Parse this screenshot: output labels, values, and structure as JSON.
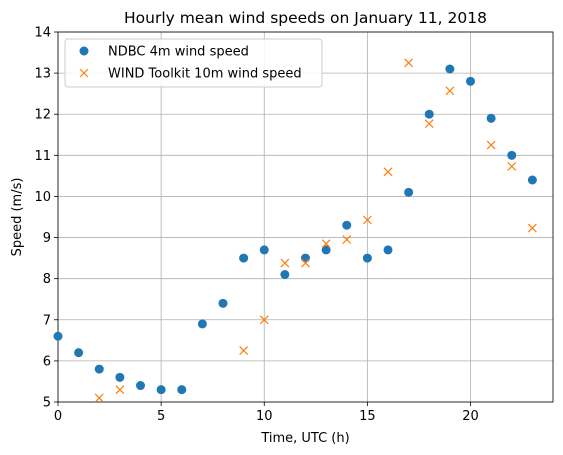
{
  "chart_data": {
    "type": "scatter",
    "title": "Hourly mean wind speeds on January 11, 2018",
    "xlabel": "Time, UTC (h)",
    "ylabel": "Speed (m/s)",
    "xlim": [
      0,
      24
    ],
    "ylim": [
      5,
      14
    ],
    "xticks": [
      0,
      5,
      10,
      15,
      20
    ],
    "yticks": [
      5,
      6,
      7,
      8,
      9,
      10,
      11,
      12,
      13,
      14
    ],
    "grid": true,
    "legend_position": "top-left",
    "series": [
      {
        "name": "NDBC 4m wind speed",
        "marker": "circle",
        "color": "#1f77b4",
        "x": [
          0,
          1,
          2,
          3,
          4,
          5,
          6,
          7,
          8,
          9,
          10,
          11,
          12,
          13,
          14,
          15,
          16,
          17,
          18,
          19,
          20,
          21,
          22,
          23
        ],
        "y": [
          6.6,
          6.2,
          5.8,
          5.6,
          5.4,
          5.3,
          5.3,
          6.9,
          7.4,
          8.5,
          8.7,
          8.1,
          8.5,
          8.7,
          9.3,
          8.5,
          8.7,
          10.1,
          12.0,
          13.1,
          12.8,
          11.9,
          11.0,
          10.4
        ]
      },
      {
        "name": "WIND Toolkit 10m wind speed",
        "marker": "x",
        "color": "#ff7f0e",
        "x": [
          2,
          3,
          9,
          10,
          11,
          12,
          13,
          14,
          15,
          16,
          17,
          18,
          19,
          21,
          22,
          23
        ],
        "y": [
          5.1,
          5.3,
          6.25,
          7.0,
          8.38,
          8.38,
          8.85,
          8.95,
          9.43,
          10.6,
          13.25,
          11.77,
          12.57,
          11.25,
          10.73,
          9.23
        ]
      }
    ]
  }
}
